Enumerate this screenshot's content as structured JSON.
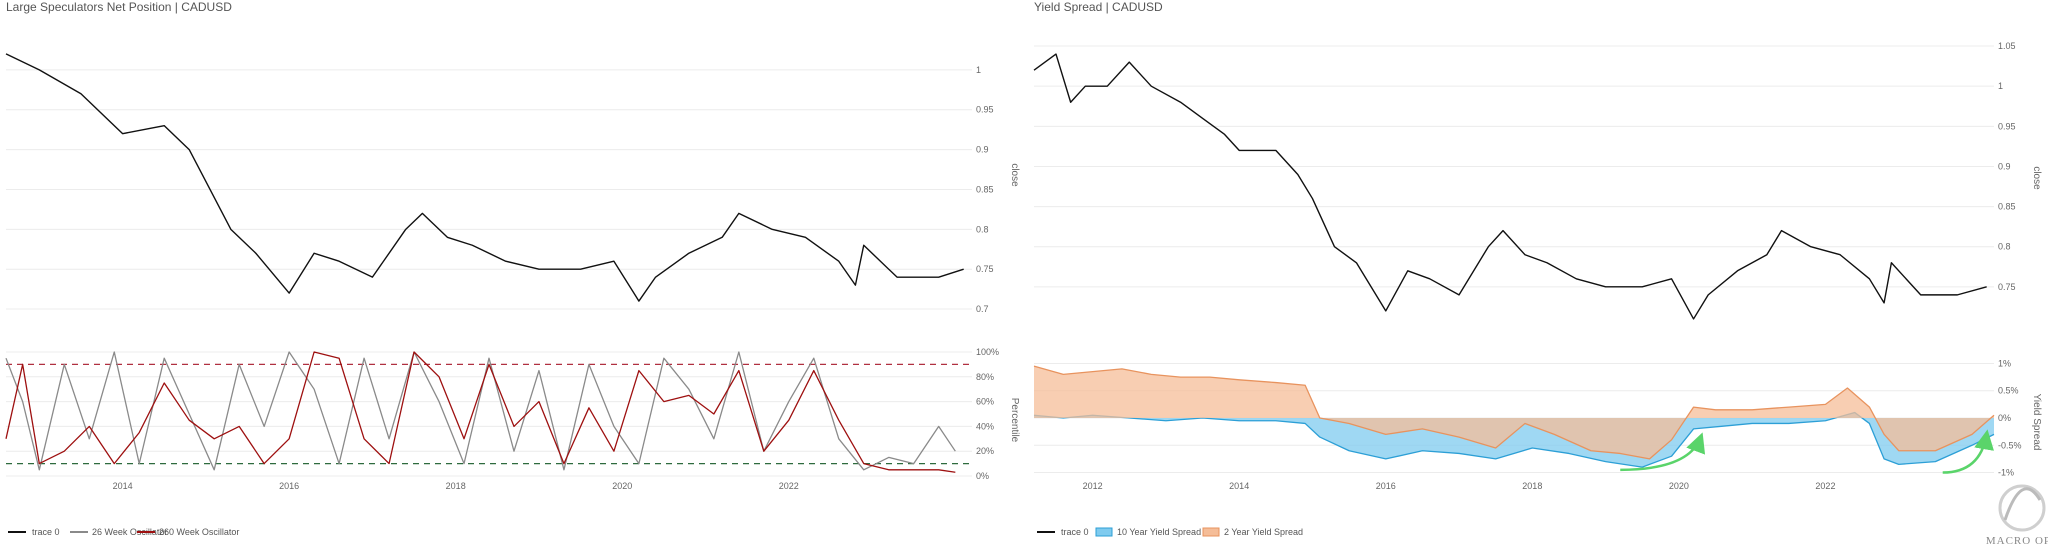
{
  "chart_data": [
    {
      "type": "line",
      "title": "Large Speculators Net Position | CADUSD",
      "panels": [
        {
          "id": "price",
          "ylabel": "close",
          "ylim": [
            0.68,
            1.05
          ],
          "yticks": [
            "0.7",
            "0.75",
            "0.8",
            "0.85",
            "0.9",
            "0.95",
            "1"
          ],
          "ytick_values": [
            0.7,
            0.75,
            0.8,
            0.85,
            0.9,
            0.95,
            1.0
          ]
        },
        {
          "id": "oscillator",
          "ylabel": "Percentile",
          "ylim": [
            0,
            100
          ],
          "yticks": [
            "0%",
            "20%",
            "40%",
            "60%",
            "80%",
            "100%"
          ],
          "ytick_values": [
            0,
            20,
            40,
            60,
            80,
            100
          ],
          "reference_lines": [
            {
              "value": 90,
              "color": "#b03040"
            },
            {
              "value": 10,
              "color": "#2e6b3e"
            }
          ]
        }
      ],
      "xlim": [
        2012.6,
        2024.2
      ],
      "xticks": [
        "2014",
        "2016",
        "2018",
        "2020",
        "2022"
      ],
      "xtick_values": [
        2014,
        2016,
        2018,
        2020,
        2022
      ],
      "series": [
        {
          "name": "trace 0",
          "panel": "price",
          "color": "#111111",
          "x": [
            2012.6,
            2013.0,
            2013.5,
            2014.0,
            2014.5,
            2014.8,
            2015.0,
            2015.3,
            2015.6,
            2016.0,
            2016.3,
            2016.6,
            2017.0,
            2017.4,
            2017.6,
            2017.9,
            2018.2,
            2018.6,
            2019.0,
            2019.5,
            2019.9,
            2020.2,
            2020.4,
            2020.8,
            2021.2,
            2021.4,
            2021.8,
            2022.2,
            2022.6,
            2022.8,
            2022.9,
            2023.3,
            2023.8,
            2024.1
          ],
          "y": [
            1.02,
            1.0,
            0.97,
            0.92,
            0.93,
            0.9,
            0.86,
            0.8,
            0.77,
            0.72,
            0.77,
            0.76,
            0.74,
            0.8,
            0.82,
            0.79,
            0.78,
            0.76,
            0.75,
            0.75,
            0.76,
            0.71,
            0.74,
            0.77,
            0.79,
            0.82,
            0.8,
            0.79,
            0.76,
            0.73,
            0.78,
            0.74,
            0.74,
            0.75
          ]
        },
        {
          "name": "26 Week Oscillator",
          "panel": "oscillator",
          "color": "#8a8a8a",
          "x": [
            2012.6,
            2012.8,
            2013.0,
            2013.3,
            2013.6,
            2013.9,
            2014.2,
            2014.5,
            2014.8,
            2015.1,
            2015.4,
            2015.7,
            2016.0,
            2016.3,
            2016.6,
            2016.9,
            2017.2,
            2017.5,
            2017.8,
            2018.1,
            2018.4,
            2018.7,
            2019.0,
            2019.3,
            2019.6,
            2019.9,
            2020.2,
            2020.5,
            2020.8,
            2021.1,
            2021.4,
            2021.7,
            2022.0,
            2022.3,
            2022.6,
            2022.9,
            2023.2,
            2023.5,
            2023.8,
            2024.0
          ],
          "y": [
            95,
            60,
            5,
            90,
            30,
            100,
            10,
            95,
            50,
            5,
            90,
            40,
            100,
            70,
            10,
            95,
            30,
            100,
            60,
            10,
            95,
            20,
            85,
            5,
            90,
            40,
            10,
            95,
            70,
            30,
            100,
            20,
            60,
            95,
            30,
            5,
            15,
            10,
            40,
            20
          ]
        },
        {
          "name": "260 Week Oscillator",
          "panel": "oscillator",
          "color": "#9e1010",
          "x": [
            2012.6,
            2012.8,
            2013.0,
            2013.3,
            2013.6,
            2013.9,
            2014.2,
            2014.5,
            2014.8,
            2015.1,
            2015.4,
            2015.7,
            2016.0,
            2016.3,
            2016.6,
            2016.9,
            2017.2,
            2017.5,
            2017.8,
            2018.1,
            2018.4,
            2018.7,
            2019.0,
            2019.3,
            2019.6,
            2019.9,
            2020.2,
            2020.5,
            2020.8,
            2021.1,
            2021.4,
            2021.7,
            2022.0,
            2022.3,
            2022.6,
            2022.9,
            2023.2,
            2023.5,
            2023.8,
            2024.0
          ],
          "y": [
            30,
            90,
            10,
            20,
            40,
            10,
            35,
            75,
            45,
            30,
            40,
            10,
            30,
            100,
            95,
            30,
            10,
            100,
            80,
            30,
            90,
            40,
            60,
            10,
            55,
            20,
            85,
            60,
            65,
            50,
            85,
            20,
            45,
            85,
            45,
            10,
            5,
            5,
            5,
            3
          ]
        }
      ],
      "legend": {
        "placement": "bottom-left",
        "items": [
          "trace 0",
          "26 Week Oscillator",
          "260 Week Oscillator"
        ]
      }
    },
    {
      "type": "line",
      "title": "Yield Spread | CADUSD",
      "panels": [
        {
          "id": "price",
          "ylabel": "close",
          "ylim": [
            0.69,
            1.07
          ],
          "yticks": [
            "0.75",
            "0.8",
            "0.85",
            "0.9",
            "0.95",
            "1",
            "1.05"
          ],
          "ytick_values": [
            0.75,
            0.8,
            0.85,
            0.9,
            0.95,
            1.0,
            1.05
          ]
        },
        {
          "id": "spread",
          "ylabel": "Yield Spread",
          "ylim": [
            -1.1,
            1.1
          ],
          "yticks": [
            "-1%",
            "-0.5%",
            "0%",
            "0.5%",
            "1%"
          ],
          "ytick_values": [
            -1,
            -0.5,
            0,
            0.5,
            1
          ]
        }
      ],
      "xlim": [
        2011.2,
        2024.3
      ],
      "xticks": [
        "2012",
        "2014",
        "2016",
        "2018",
        "2020",
        "2022"
      ],
      "xtick_values": [
        2012,
        2014,
        2016,
        2018,
        2020,
        2022
      ],
      "series": [
        {
          "name": "trace 0",
          "panel": "price",
          "color": "#111111",
          "x": [
            2011.2,
            2011.5,
            2011.7,
            2011.9,
            2012.2,
            2012.5,
            2012.8,
            2013.2,
            2013.5,
            2013.8,
            2014.0,
            2014.5,
            2014.8,
            2015.0,
            2015.3,
            2015.6,
            2016.0,
            2016.3,
            2016.6,
            2017.0,
            2017.4,
            2017.6,
            2017.9,
            2018.2,
            2018.6,
            2019.0,
            2019.5,
            2019.9,
            2020.2,
            2020.4,
            2020.8,
            2021.2,
            2021.4,
            2021.8,
            2022.2,
            2022.6,
            2022.8,
            2022.9,
            2023.3,
            2023.8,
            2024.2
          ],
          "y": [
            1.02,
            1.04,
            0.98,
            1.0,
            1.0,
            1.03,
            1.0,
            0.98,
            0.96,
            0.94,
            0.92,
            0.92,
            0.89,
            0.86,
            0.8,
            0.78,
            0.72,
            0.77,
            0.76,
            0.74,
            0.8,
            0.82,
            0.79,
            0.78,
            0.76,
            0.75,
            0.75,
            0.76,
            0.71,
            0.74,
            0.77,
            0.79,
            0.82,
            0.8,
            0.79,
            0.76,
            0.73,
            0.78,
            0.74,
            0.74,
            0.75
          ]
        },
        {
          "name": "10 Year Yield Spread",
          "panel": "spread",
          "color": "#2c9fd6",
          "fill": "#7fcbef",
          "x": [
            2011.2,
            2011.6,
            2012.0,
            2012.5,
            2013.0,
            2013.5,
            2014.0,
            2014.5,
            2014.9,
            2015.1,
            2015.5,
            2016.0,
            2016.5,
            2017.0,
            2017.5,
            2018.0,
            2018.5,
            2019.0,
            2019.5,
            2019.9,
            2020.2,
            2020.6,
            2021.0,
            2021.5,
            2022.0,
            2022.4,
            2022.6,
            2022.8,
            2023.0,
            2023.5,
            2024.0,
            2024.3
          ],
          "y": [
            0.05,
            0.0,
            0.05,
            0.0,
            -0.05,
            0.0,
            -0.05,
            -0.05,
            -0.1,
            -0.35,
            -0.6,
            -0.75,
            -0.6,
            -0.65,
            -0.75,
            -0.55,
            -0.65,
            -0.8,
            -0.9,
            -0.7,
            -0.2,
            -0.15,
            -0.1,
            -0.1,
            -0.05,
            0.1,
            -0.1,
            -0.75,
            -0.85,
            -0.8,
            -0.5,
            -0.3
          ]
        },
        {
          "name": "2 Year Yield Spread",
          "panel": "spread",
          "color": "#e8935e",
          "fill": "#f5bd98",
          "x": [
            2011.2,
            2011.6,
            2012.0,
            2012.4,
            2012.8,
            2013.2,
            2013.6,
            2014.0,
            2014.5,
            2014.9,
            2015.1,
            2015.5,
            2016.0,
            2016.5,
            2017.0,
            2017.5,
            2017.9,
            2018.3,
            2018.8,
            2019.2,
            2019.6,
            2019.9,
            2020.2,
            2020.5,
            2021.0,
            2021.5,
            2022.0,
            2022.3,
            2022.6,
            2022.8,
            2023.0,
            2023.5,
            2024.0,
            2024.3
          ],
          "y": [
            0.95,
            0.8,
            0.85,
            0.9,
            0.8,
            0.75,
            0.75,
            0.7,
            0.65,
            0.6,
            0.0,
            -0.1,
            -0.3,
            -0.2,
            -0.35,
            -0.55,
            -0.1,
            -0.3,
            -0.6,
            -0.65,
            -0.75,
            -0.4,
            0.2,
            0.15,
            0.15,
            0.2,
            0.25,
            0.55,
            0.2,
            -0.3,
            -0.6,
            -0.6,
            -0.3,
            0.05
          ]
        }
      ],
      "annotations": [
        {
          "type": "arrow",
          "color": "#5ad46a",
          "from_x": 2019.2,
          "from_y": -0.95,
          "to_x": 2020.3,
          "to_y": -0.35
        },
        {
          "type": "arrow",
          "color": "#5ad46a",
          "from_x": 2023.6,
          "from_y": -1.0,
          "to_x": 2024.2,
          "to_y": -0.3
        }
      ],
      "legend": {
        "placement": "bottom-left",
        "items": [
          "trace 0",
          "10 Year Yield Spread",
          "2 Year Yield Spread"
        ]
      }
    }
  ],
  "logo": {
    "text": "MACRO OPS"
  }
}
